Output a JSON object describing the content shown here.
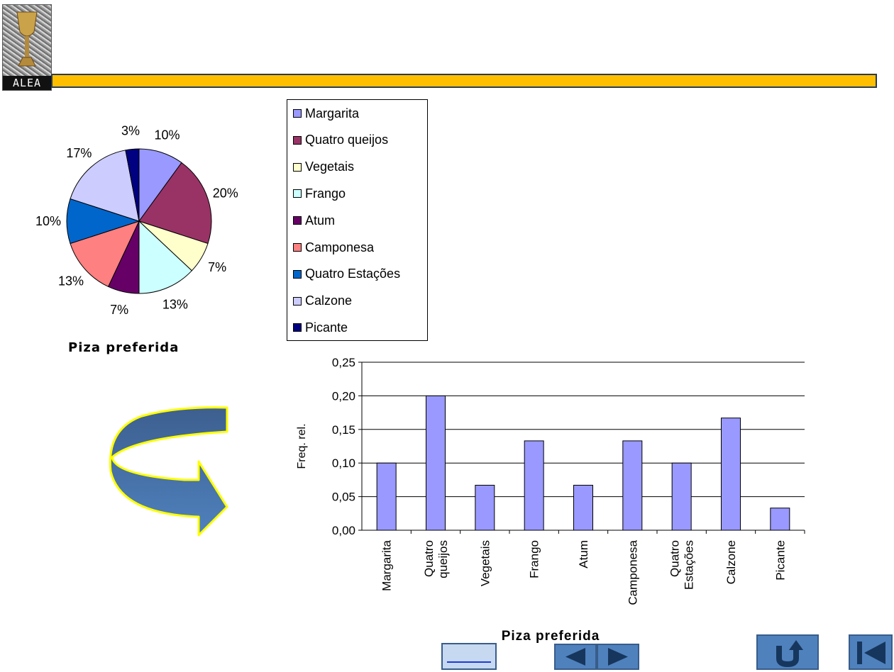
{
  "logo": {
    "text": "ALEA"
  },
  "colors": {
    "topbar": "#ffbf00",
    "bar_fill": "#9999ff",
    "arrow": "#4f81bd",
    "arrow_outline": "#ffff00",
    "nav_button": "#4f81bd"
  },
  "chart_data": [
    {
      "type": "pie",
      "title": "Piza preferida",
      "categories": [
        "Margarita",
        "Quatro queijos",
        "Vegetais",
        "Frango",
        "Atum",
        "Camponesa",
        "Quatro Estações",
        "Calzone",
        "Picante"
      ],
      "values": [
        10,
        20,
        7,
        13,
        7,
        13,
        10,
        17,
        3
      ],
      "labels": [
        "10%",
        "20%",
        "7%",
        "13%",
        "7%",
        "13%",
        "10%",
        "17%",
        "3%"
      ],
      "colors": [
        "#9999ff",
        "#993366",
        "#ffffcc",
        "#ccffff",
        "#660066",
        "#ff8080",
        "#0066cc",
        "#ccccff",
        "#000080"
      ],
      "legend": "right"
    },
    {
      "type": "bar",
      "title": "Piza preferida",
      "xlabel": "Piza preferida",
      "ylabel": "Freq. rel.",
      "categories": [
        "Margarita",
        "Quatro queijos",
        "Vegetais",
        "Frango",
        "Atum",
        "Camponesa",
        "Quatro Estações",
        "Calzone",
        "Picante"
      ],
      "category_lines": [
        [
          "Margarita"
        ],
        [
          "Quatro",
          "queijos"
        ],
        [
          "Vegetais"
        ],
        [
          "Frango"
        ],
        [
          "Atum"
        ],
        [
          "Camponesa"
        ],
        [
          "Quatro",
          "Estações"
        ],
        [
          "Calzone"
        ],
        [
          "Picante"
        ]
      ],
      "values": [
        0.1,
        0.2,
        0.067,
        0.133,
        0.067,
        0.133,
        0.1,
        0.167,
        0.033
      ],
      "ylim": [
        0,
        0.25
      ],
      "yticks": [
        0,
        0.05,
        0.1,
        0.15,
        0.2,
        0.25
      ],
      "ytick_labels": [
        "0,00",
        "0,05",
        "0,10",
        "0,15",
        "0,20",
        "0,25"
      ],
      "grid": true
    }
  ]
}
